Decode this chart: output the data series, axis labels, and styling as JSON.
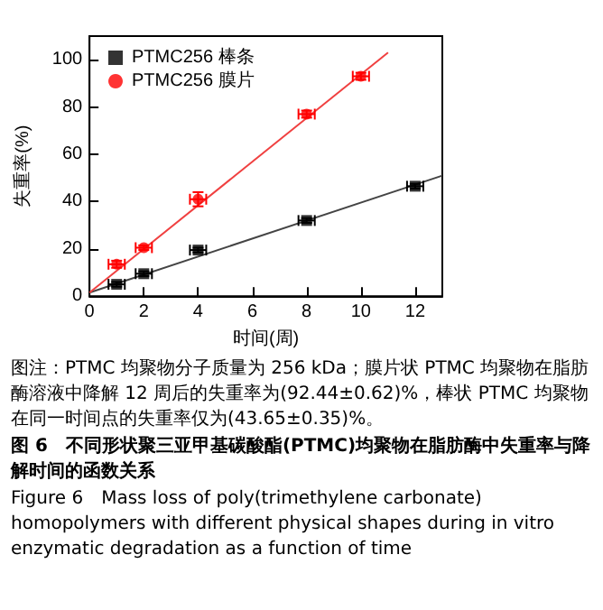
{
  "chart_data": {
    "type": "scatter",
    "xlabel": "时间(周)",
    "ylabel": "失重率(%)",
    "xlim": [
      0,
      13
    ],
    "ylim": [
      0,
      110
    ],
    "xticks": [
      0,
      2,
      4,
      6,
      8,
      10,
      12
    ],
    "yticks": [
      0,
      20,
      40,
      60,
      80,
      100
    ],
    "legend": "top left",
    "grid": false,
    "series": [
      {
        "name": "PTMC256 棒条",
        "color": "#000000",
        "marker": "square",
        "x": [
          1,
          2,
          4,
          8,
          12
        ],
        "values": [
          5,
          9.5,
          19.5,
          32,
          46.5
        ],
        "errors": [
          1,
          1,
          1,
          1,
          1
        ],
        "xerrors": [
          0.3,
          0.3,
          0.3,
          0.3,
          0.3
        ]
      },
      {
        "name": "PTMC256 膜片",
        "color": "#ff0000",
        "marker": "circle",
        "x": [
          1,
          2,
          4,
          8,
          10
        ],
        "values": [
          13.5,
          20.5,
          41,
          77,
          93
        ],
        "errors": [
          1.5,
          1,
          3,
          1.5,
          1.5
        ],
        "xerrors": [
          0.3,
          0.3,
          0.3,
          0.3,
          0.3
        ]
      },
      {
        "type": "line",
        "color": "#444444",
        "x": [
          0,
          13
        ],
        "values": [
          1.5,
          51
        ]
      },
      {
        "type": "line",
        "color": "#f04040",
        "x": [
          0,
          11
        ],
        "values": [
          1.5,
          103
        ]
      }
    ],
    "annotations": [
      "图注：PTMC 均聚物分子质量为 256 kDa；膜片状 PTMC 均聚物在脂肪酶溶液中降解 12 周后的失重率为(92.44±0.62)%，棒状 PTMC 均聚物在同一时间点的失重率仅为(43.65±0.35)%。",
      "图 6　不同形状聚三亚甲基碳酸酯(PTMC)均聚物在脂肪酶中失重率与降解时间的函数关系",
      "Figure 6　Mass loss of poly(trimethylene carbonate) homopolymers with different physical shapes during in vitro enzymatic degradation as a function of time"
    ]
  }
}
